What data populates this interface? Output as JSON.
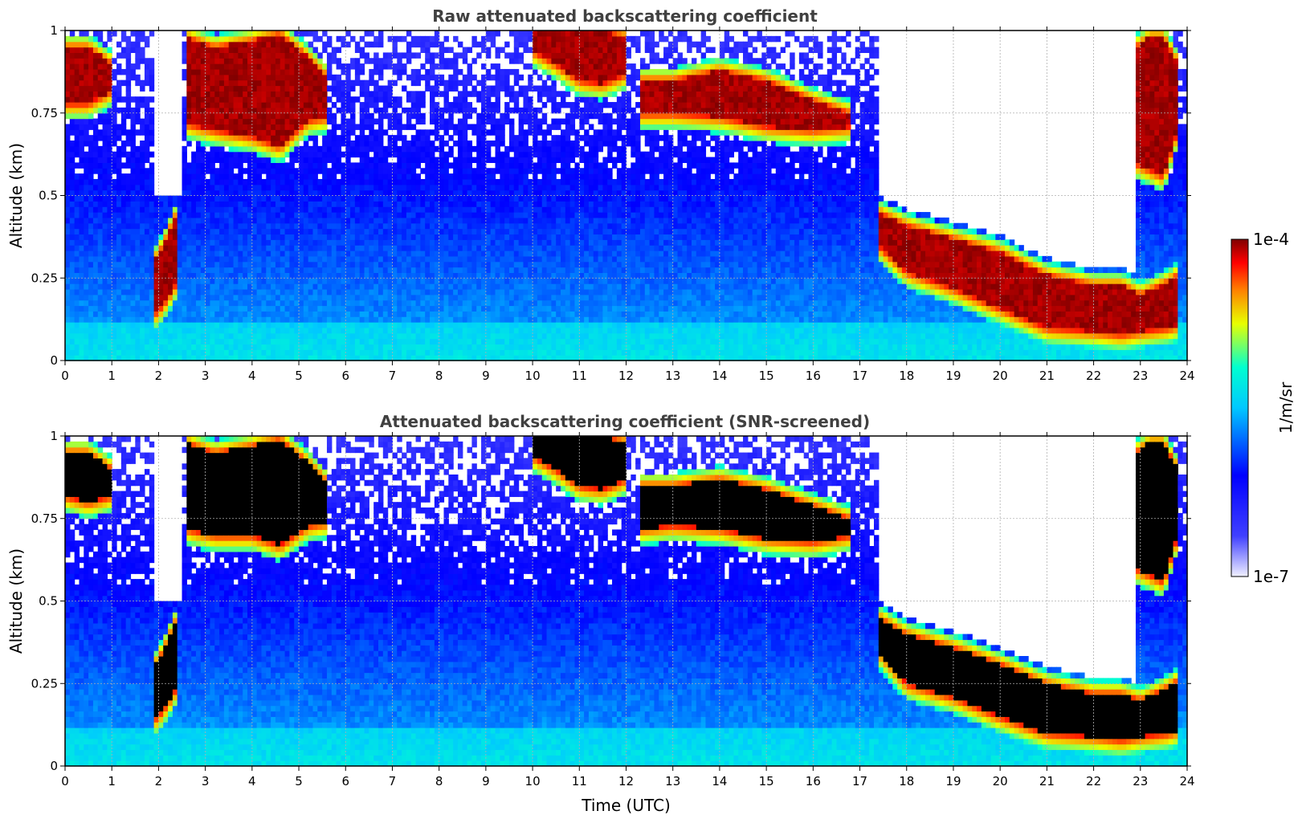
{
  "chart_data": [
    {
      "type": "heatmap",
      "title": "Raw attenuated backscattering coefficient",
      "xlabel": "",
      "ylabel": "Altitude (km)",
      "xlim": [
        0,
        24
      ],
      "ylim": [
        0,
        1
      ],
      "xticks": [
        "0",
        "1",
        "2",
        "3",
        "4",
        "5",
        "6",
        "7",
        "8",
        "9",
        "10",
        "11",
        "12",
        "13",
        "14",
        "15",
        "16",
        "17",
        "18",
        "19",
        "20",
        "21",
        "22",
        "23",
        "24"
      ],
      "yticks": [
        "0",
        "0.25",
        "0.5",
        "0.75",
        "1"
      ],
      "grid": true,
      "screened": false,
      "layers": [
        {
          "x": [
            0.0,
            0.5,
            1.0
          ],
          "base": [
            0.78,
            0.78,
            0.82
          ],
          "top": [
            0.95,
            0.95,
            0.9
          ]
        },
        {
          "x": [
            2.6,
            3.2,
            4.0,
            4.6,
            5.2,
            5.6
          ],
          "base": [
            0.72,
            0.7,
            0.68,
            0.65,
            0.73,
            0.74
          ],
          "top": [
            0.98,
            0.95,
            0.97,
            0.99,
            0.92,
            0.86
          ]
        },
        {
          "x": [
            1.9,
            2.1,
            2.4
          ],
          "base": [
            0.14,
            0.17,
            0.24
          ],
          "top": [
            0.3,
            0.35,
            0.45
          ]
        },
        {
          "x": [
            10.0,
            10.5,
            11.0,
            11.5,
            12.0
          ],
          "base": [
            0.94,
            0.9,
            0.85,
            0.84,
            0.87
          ],
          "top": [
            1.0,
            1.0,
            1.0,
            1.0,
            0.98
          ]
        },
        {
          "x": [
            12.3,
            13.0,
            14.0,
            15.0,
            16.0,
            16.8
          ],
          "base": [
            0.75,
            0.75,
            0.74,
            0.71,
            0.7,
            0.71
          ],
          "top": [
            0.85,
            0.85,
            0.88,
            0.85,
            0.79,
            0.75
          ]
        },
        {
          "x": [
            17.4,
            18.0,
            19.0,
            20.0,
            21.0,
            22.0,
            22.6,
            23.0,
            23.6,
            23.8
          ],
          "base": [
            0.35,
            0.27,
            0.22,
            0.16,
            0.1,
            0.09,
            0.08,
            0.09,
            0.1,
            0.11
          ],
          "top": [
            0.45,
            0.41,
            0.37,
            0.33,
            0.26,
            0.23,
            0.23,
            0.2,
            0.24,
            0.26
          ]
        },
        {
          "x": [
            22.9,
            23.2,
            23.5,
            23.8
          ],
          "base": [
            0.6,
            0.58,
            0.56,
            0.7
          ],
          "top": [
            0.95,
            0.98,
            0.98,
            0.9
          ]
        }
      ]
    },
    {
      "type": "heatmap",
      "title": "Attenuated backscattering coefficient (SNR-screened)",
      "xlabel": "Time (UTC)",
      "ylabel": "Altitude (km)",
      "xlim": [
        0,
        24
      ],
      "ylim": [
        0,
        1
      ],
      "xticks": [
        "0",
        "1",
        "2",
        "3",
        "4",
        "5",
        "6",
        "7",
        "8",
        "9",
        "10",
        "11",
        "12",
        "13",
        "14",
        "15",
        "16",
        "17",
        "18",
        "19",
        "20",
        "21",
        "22",
        "23",
        "24"
      ],
      "yticks": [
        "0",
        "0.25",
        "0.5",
        "0.75",
        "1"
      ],
      "grid": true,
      "screened": true,
      "layers": [
        {
          "x": [
            0.0,
            0.5,
            1.0
          ],
          "base": [
            0.82,
            0.8,
            0.82
          ],
          "top": [
            0.95,
            0.95,
            0.9
          ]
        },
        {
          "x": [
            2.6,
            3.2,
            4.0,
            4.6,
            5.2,
            5.6
          ],
          "base": [
            0.72,
            0.7,
            0.7,
            0.67,
            0.73,
            0.74
          ],
          "top": [
            0.98,
            0.95,
            0.97,
            0.99,
            0.92,
            0.86
          ]
        },
        {
          "x": [
            1.9,
            2.1,
            2.4
          ],
          "base": [
            0.14,
            0.17,
            0.24
          ],
          "top": [
            0.3,
            0.35,
            0.45
          ]
        },
        {
          "x": [
            10.0,
            10.5,
            11.0,
            11.5,
            12.0
          ],
          "base": [
            0.94,
            0.9,
            0.85,
            0.84,
            0.87
          ],
          "top": [
            1.0,
            1.0,
            1.0,
            1.0,
            0.98
          ]
        },
        {
          "x": [
            12.3,
            13.0,
            14.0,
            15.0,
            16.0,
            16.8
          ],
          "base": [
            0.72,
            0.73,
            0.72,
            0.69,
            0.68,
            0.7
          ],
          "top": [
            0.85,
            0.85,
            0.87,
            0.84,
            0.79,
            0.75
          ]
        },
        {
          "x": [
            17.4,
            18.0,
            19.0,
            20.0,
            21.0,
            22.0,
            22.6,
            23.0,
            23.6,
            23.8
          ],
          "base": [
            0.35,
            0.25,
            0.21,
            0.15,
            0.1,
            0.09,
            0.08,
            0.09,
            0.1,
            0.11
          ],
          "top": [
            0.45,
            0.4,
            0.36,
            0.31,
            0.25,
            0.22,
            0.22,
            0.2,
            0.24,
            0.26
          ]
        },
        {
          "x": [
            22.9,
            23.2,
            23.5,
            23.8
          ],
          "base": [
            0.6,
            0.58,
            0.56,
            0.7
          ],
          "top": [
            0.95,
            0.98,
            0.98,
            0.9
          ]
        }
      ]
    }
  ],
  "colorbar": {
    "label": "1/m/sr",
    "min_label": "1e-7",
    "max_label": "1e-4",
    "scale": "log",
    "range": [
      1e-07,
      0.0001
    ],
    "colormap": [
      "#e8e8f8",
      "#0000ff",
      "#00a0ff",
      "#00ffe0",
      "#ffff00",
      "#ff8000",
      "#ff0000",
      "#800000"
    ]
  }
}
